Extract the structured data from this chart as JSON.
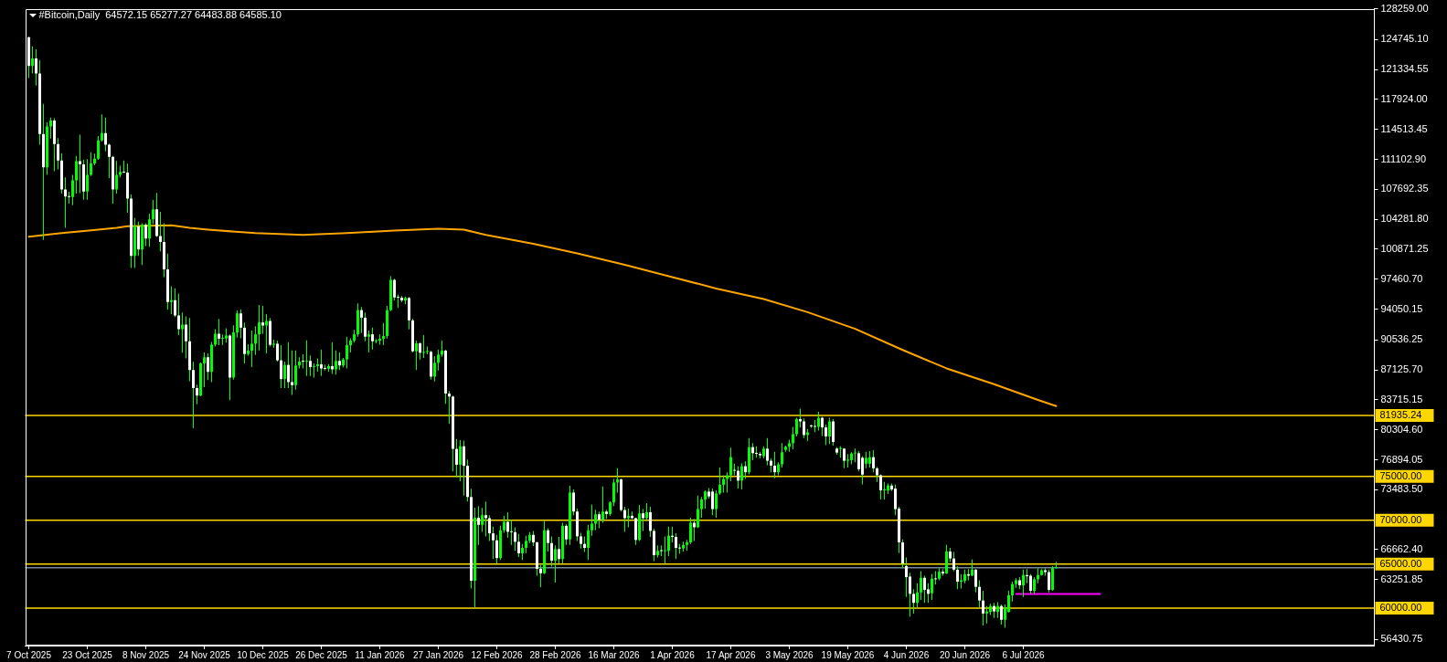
{
  "chart_data": {
    "type": "candlestick",
    "title": "#Bitcoin,Daily  64572.15 65277.27 64483.88 64585.10",
    "color": "#00ff00",
    "x": [
      "2025-10-07",
      "2025-10-08",
      "2025-10-09",
      "2025-10-10",
      "2025-10-11",
      "2025-10-12",
      "2025-10-13",
      "2025-10-14",
      "2025-10-15",
      "2025-10-16",
      "2025-10-17",
      "2025-10-18",
      "2025-10-19",
      "2025-10-20",
      "2025-10-21",
      "2025-10-22",
      "2025-10-23",
      "2025-10-24",
      "2025-10-25",
      "2025-10-26",
      "2025-10-27",
      "2025-10-28",
      "2025-10-29",
      "2025-10-30",
      "2025-10-31",
      "2025-11-01",
      "2025-11-02",
      "2025-11-03",
      "2025-11-04",
      "2025-11-05",
      "2025-11-06",
      "2025-11-07",
      "2025-11-08",
      "2025-11-09",
      "2025-11-10",
      "2025-11-11",
      "2025-11-12",
      "2025-11-13",
      "2025-11-14",
      "2025-11-15",
      "2025-11-16",
      "2025-11-17",
      "2025-11-18",
      "2025-11-19",
      "2025-11-20",
      "2025-11-21",
      "2025-11-22",
      "2025-11-23",
      "2025-11-24",
      "2025-11-25",
      "2025-11-26",
      "2025-11-27",
      "2025-11-28",
      "2025-11-29",
      "2025-11-30",
      "2025-12-01",
      "2025-12-02",
      "2025-12-03",
      "2025-12-04",
      "2025-12-05",
      "2025-12-06",
      "2025-12-07",
      "2025-12-08",
      "2025-12-09",
      "2025-12-10",
      "2025-12-11",
      "2025-12-12",
      "2025-12-13",
      "2025-12-14",
      "2025-12-15",
      "2025-12-16",
      "2025-12-17",
      "2025-12-18",
      "2025-12-19",
      "2025-12-20",
      "2025-12-21",
      "2025-12-22",
      "2025-12-23",
      "2025-12-24",
      "2025-12-25",
      "2025-12-26",
      "2025-12-27",
      "2025-12-28",
      "2025-12-29",
      "2025-12-30",
      "2025-12-31",
      "2026-01-01",
      "2026-01-02",
      "2026-01-03",
      "2026-01-04",
      "2026-01-05",
      "2026-01-06",
      "2026-01-07",
      "2026-01-08",
      "2026-01-09",
      "2026-01-10",
      "2026-01-11",
      "2026-01-12",
      "2026-01-13",
      "2026-01-14",
      "2026-01-15",
      "2026-01-16",
      "2026-01-17",
      "2026-01-18",
      "2026-01-19",
      "2026-01-20",
      "2026-01-21",
      "2026-01-22",
      "2026-01-23",
      "2026-01-24",
      "2026-01-25",
      "2026-01-26",
      "2026-01-27",
      "2026-01-28",
      "2026-01-29",
      "2026-01-30",
      "2026-01-31",
      "2026-02-01",
      "2026-02-02",
      "2026-02-03",
      "2026-02-04",
      "2026-02-05",
      "2026-02-06",
      "2026-02-07",
      "2026-02-08",
      "2026-02-09",
      "2026-02-10",
      "2026-02-11",
      "2026-02-12",
      "2026-02-13",
      "2026-02-14",
      "2026-02-15",
      "2026-02-16",
      "2026-02-17",
      "2026-02-18",
      "2026-02-19",
      "2026-02-20",
      "2026-02-21",
      "2026-02-22",
      "2026-02-23",
      "2026-02-24",
      "2026-02-25",
      "2026-02-26",
      "2026-02-27",
      "2026-02-28",
      "2026-03-01",
      "2026-03-02",
      "2026-03-03",
      "2026-03-04",
      "2026-03-05",
      "2026-03-06",
      "2026-03-07",
      "2026-03-08",
      "2026-03-09",
      "2026-03-10",
      "2026-03-11",
      "2026-03-12",
      "2026-03-13",
      "2026-03-14",
      "2026-03-15",
      "2026-03-16",
      "2026-03-17",
      "2026-03-18",
      "2026-03-19",
      "2026-03-20",
      "2026-03-21",
      "2026-03-22",
      "2026-03-23",
      "2026-03-24",
      "2026-03-25",
      "2026-03-26",
      "2026-03-27",
      "2026-03-28",
      "2026-03-29",
      "2026-03-30",
      "2026-03-31",
      "2026-04-01",
      "2026-04-02",
      "2026-04-03",
      "2026-04-04",
      "2026-04-05",
      "2026-04-06",
      "2026-04-07",
      "2026-04-08",
      "2026-04-09",
      "2026-04-10",
      "2026-04-11",
      "2026-04-12",
      "2026-04-13",
      "2026-04-14",
      "2026-04-15",
      "2026-04-16",
      "2026-04-17",
      "2026-04-18",
      "2026-04-19",
      "2026-04-20",
      "2026-04-21",
      "2026-04-22",
      "2026-04-23",
      "2026-04-24",
      "2026-04-25",
      "2026-04-26",
      "2026-04-27",
      "2026-04-28",
      "2026-04-29",
      "2026-04-30",
      "2026-05-01",
      "2026-05-02",
      "2026-05-03",
      "2026-05-04",
      "2026-05-05",
      "2026-05-06",
      "2026-05-07",
      "2026-05-08",
      "2026-05-09",
      "2026-05-10",
      "2026-05-11",
      "2026-05-12",
      "2026-05-13",
      "2026-05-14",
      "2026-05-15",
      "2026-05-16",
      "2026-05-17",
      "2026-05-18",
      "2026-05-19",
      "2026-05-20",
      "2026-05-21",
      "2026-05-22",
      "2026-05-23",
      "2026-05-24",
      "2026-05-25",
      "2026-05-26",
      "2026-05-27",
      "2026-05-28",
      "2026-05-29",
      "2026-05-30",
      "2026-05-31",
      "2026-06-01",
      "2026-06-02",
      "2026-06-03",
      "2026-06-04",
      "2026-06-05",
      "2026-06-06",
      "2026-06-07",
      "2026-06-08",
      "2026-06-09",
      "2026-06-10",
      "2026-06-11",
      "2026-06-12",
      "2026-06-13",
      "2026-06-14",
      "2026-06-15",
      "2026-06-16",
      "2026-06-17",
      "2026-06-18",
      "2026-06-19",
      "2026-06-20",
      "2026-06-21",
      "2026-06-22",
      "2026-06-23",
      "2026-06-24",
      "2026-06-25",
      "2026-06-26",
      "2026-06-27",
      "2026-06-28",
      "2026-06-29",
      "2026-06-30",
      "2026-07-01",
      "2026-07-02",
      "2026-07-03",
      "2026-07-04",
      "2026-07-05",
      "2026-07-06",
      "2026-07-07",
      "2026-07-08",
      "2026-07-09",
      "2026-07-10",
      "2026-07-11",
      "2026-07-12",
      "2026-07-13",
      "2026-07-14",
      "2026-07-15"
    ],
    "ohlc": [
      [
        125010,
        125080,
        120360,
        121740
      ],
      [
        121740,
        123980,
        120880,
        122600
      ],
      [
        122600,
        123630,
        119500,
        120880
      ],
      [
        120880,
        122430,
        112780,
        113990
      ],
      [
        113990,
        117430,
        101930,
        110200
      ],
      [
        110200,
        115360,
        109340,
        114850
      ],
      [
        114850,
        115880,
        113470,
        115540
      ],
      [
        115540,
        115780,
        109750,
        112850
      ],
      [
        112850,
        113540,
        109960,
        110990
      ],
      [
        110990,
        111820,
        107200,
        107680
      ],
      [
        107680,
        109060,
        103310,
        106860
      ],
      [
        106860,
        107410,
        106060,
        106820
      ],
      [
        106820,
        109340,
        105890,
        108720
      ],
      [
        108720,
        111510,
        107200,
        110890
      ],
      [
        110890,
        113920,
        107270,
        110540
      ],
      [
        110540,
        111060,
        106510,
        107440
      ],
      [
        107440,
        111130,
        106510,
        109340
      ],
      [
        109340,
        111920,
        109200,
        110650
      ],
      [
        110650,
        111750,
        110440,
        111200
      ],
      [
        111200,
        113750,
        111060,
        113260
      ],
      [
        113260,
        116230,
        113130,
        114090
      ],
      [
        114090,
        115880,
        112020,
        112780
      ],
      [
        112780,
        112900,
        108990,
        111400
      ],
      [
        111400,
        111500,
        106060,
        107680
      ],
      [
        107680,
        110920,
        107200,
        109340
      ],
      [
        109340,
        110370,
        109060,
        109680
      ],
      [
        109680,
        110990,
        109540,
        109610
      ],
      [
        109610,
        110610,
        105030,
        106650
      ],
      [
        106650,
        107100,
        98730,
        100100
      ],
      [
        100100,
        104440,
        98730,
        103480
      ],
      [
        103480,
        104000,
        100100,
        100830
      ],
      [
        100830,
        103820,
        99070,
        103650
      ],
      [
        103650,
        103820,
        101240,
        102100
      ],
      [
        102100,
        104930,
        101140,
        104270
      ],
      [
        104270,
        106480,
        103760,
        105410
      ],
      [
        105410,
        107300,
        102270,
        102380
      ],
      [
        102380,
        105130,
        100620,
        101690
      ],
      [
        101690,
        103820,
        97690,
        98590
      ],
      [
        98590,
        100380,
        94010,
        94870
      ],
      [
        94870,
        96660,
        93490,
        95070
      ],
      [
        95070,
        96420,
        93140,
        93320
      ],
      [
        93320,
        95830,
        91080,
        91770
      ],
      [
        91770,
        93660,
        89080,
        92280
      ],
      [
        92280,
        93210,
        88430,
        90390
      ],
      [
        90390,
        93040,
        85840,
        87120
      ],
      [
        87120,
        88050,
        80470,
        85050
      ],
      [
        85050,
        85460,
        83220,
        84190
      ],
      [
        84190,
        87980,
        84120,
        87870
      ],
      [
        87870,
        89110,
        85150,
        88560
      ],
      [
        88560,
        89010,
        85980,
        86900
      ],
      [
        86900,
        90320,
        85740,
        90010
      ],
      [
        90010,
        91770,
        89800,
        91250
      ],
      [
        91250,
        92940,
        89940,
        90670
      ],
      [
        90670,
        91180,
        89940,
        90700
      ],
      [
        90700,
        91870,
        90220,
        91040
      ],
      [
        91040,
        91180,
        83670,
        86260
      ],
      [
        86260,
        92220,
        86010,
        91390
      ],
      [
        91390,
        93900,
        90800,
        93560
      ],
      [
        93560,
        94010,
        90730,
        91940
      ],
      [
        91940,
        92530,
        87870,
        88940
      ],
      [
        88940,
        90040,
        88740,
        89320
      ],
      [
        89320,
        91600,
        87460,
        90110
      ],
      [
        90110,
        92110,
        88840,
        91180
      ],
      [
        91180,
        94520,
        89360,
        92530
      ],
      [
        92530,
        94420,
        91250,
        92180
      ],
      [
        92180,
        93490,
        89010,
        92700
      ],
      [
        92700,
        93040,
        89800,
        89980
      ],
      [
        89980,
        90560,
        89630,
        90110
      ],
      [
        90110,
        90460,
        88080,
        88220
      ],
      [
        88220,
        89940,
        85050,
        86080
      ],
      [
        86080,
        88080,
        85050,
        87700
      ],
      [
        87700,
        90290,
        85050,
        85740
      ],
      [
        85740,
        89360,
        84290,
        85390
      ],
      [
        85390,
        89360,
        84880,
        87630
      ],
      [
        87630,
        88560,
        87290,
        88080
      ],
      [
        88080,
        88910,
        87290,
        88060
      ],
      [
        88060,
        90490,
        86430,
        88150
      ],
      [
        88150,
        88770,
        86430,
        87460
      ],
      [
        87460,
        87870,
        86260,
        87560
      ],
      [
        87560,
        88430,
        86940,
        87770
      ],
      [
        87770,
        89420,
        86430,
        87290
      ],
      [
        87290,
        87740,
        87050,
        87250
      ],
      [
        87250,
        87800,
        86940,
        87560
      ],
      [
        87560,
        90290,
        86670,
        87190
      ],
      [
        87190,
        89360,
        86600,
        88150
      ],
      [
        88150,
        89110,
        87120,
        87630
      ],
      [
        87630,
        88490,
        87390,
        88320
      ],
      [
        88320,
        90870,
        87290,
        89940
      ],
      [
        89940,
        90730,
        89110,
        90460
      ],
      [
        90460,
        91700,
        90220,
        91180
      ],
      [
        91180,
        94700,
        90910,
        93940
      ],
      [
        93940,
        94280,
        91320,
        93080
      ],
      [
        93080,
        93660,
        90390,
        90910
      ],
      [
        90910,
        91600,
        89110,
        91180
      ],
      [
        91180,
        91940,
        89460,
        90390
      ],
      [
        90390,
        90640,
        90150,
        90460
      ],
      [
        90460,
        91180,
        90010,
        90670
      ],
      [
        90670,
        92460,
        89940,
        90980
      ],
      [
        90980,
        94420,
        90700,
        93940
      ],
      [
        93940,
        97800,
        93830,
        97380
      ],
      [
        97380,
        97520,
        95040,
        95380
      ],
      [
        95380,
        95730,
        94180,
        95350
      ],
      [
        95350,
        95560,
        94830,
        95040
      ],
      [
        95040,
        95490,
        94590,
        95320
      ],
      [
        95320,
        95420,
        91730,
        92770
      ],
      [
        92770,
        92970,
        89110,
        89250
      ],
      [
        89250,
        90460,
        87120,
        90150
      ],
      [
        90150,
        90290,
        88320,
        89080
      ],
      [
        89080,
        91080,
        88490,
        89180
      ],
      [
        89180,
        89800,
        88910,
        89180
      ],
      [
        89180,
        89320,
        86010,
        86360
      ],
      [
        86360,
        88700,
        85810,
        87940
      ],
      [
        87940,
        89420,
        87050,
        88870
      ],
      [
        88870,
        90460,
        88630,
        89320
      ],
      [
        89320,
        89420,
        83260,
        84430
      ],
      [
        84430,
        84710,
        80980,
        84090
      ],
      [
        84090,
        84190,
        75580,
        78130
      ],
      [
        78130,
        79260,
        74890,
        76330
      ],
      [
        76330,
        79120,
        74440,
        78430
      ],
      [
        78430,
        79090,
        72820,
        76200
      ],
      [
        76200,
        76920,
        72130,
        72650
      ],
      [
        72650,
        73580,
        62240,
        63110
      ],
      [
        63110,
        71440,
        60070,
        70300
      ],
      [
        70300,
        71610,
        67200,
        69480
      ],
      [
        69480,
        71410,
        68690,
        70580
      ],
      [
        70580,
        72130,
        68170,
        70240
      ],
      [
        70240,
        70580,
        67650,
        68510
      ],
      [
        68510,
        69270,
        65590,
        67720
      ],
      [
        67720,
        68340,
        65070,
        65690
      ],
      [
        65690,
        69380,
        65480,
        68860
      ],
      [
        68860,
        70510,
        68580,
        69820
      ],
      [
        69820,
        70920,
        68000,
        68690
      ],
      [
        68690,
        70060,
        67200,
        68650
      ],
      [
        68650,
        69200,
        66510,
        67550
      ],
      [
        67550,
        68440,
        65830,
        66240
      ],
      [
        66240,
        67310,
        65480,
        66860
      ],
      [
        66860,
        68240,
        66270,
        67650
      ],
      [
        67650,
        68650,
        67410,
        68340
      ],
      [
        68340,
        68790,
        67070,
        67480
      ],
      [
        67480,
        67550,
        63690,
        64480
      ],
      [
        64480,
        64900,
        62380,
        63970
      ],
      [
        63970,
        69890,
        63860,
        68860
      ],
      [
        68860,
        69100,
        66450,
        67410
      ],
      [
        67410,
        68170,
        64720,
        65410
      ],
      [
        65410,
        67140,
        62900,
        66720
      ],
      [
        66720,
        68100,
        65070,
        65580
      ],
      [
        65580,
        69720,
        65070,
        69370
      ],
      [
        69370,
        69550,
        67200,
        67820
      ],
      [
        67820,
        73920,
        67200,
        73160
      ],
      [
        73160,
        73510,
        70580,
        70990
      ],
      [
        70990,
        71340,
        67650,
        68170
      ],
      [
        68170,
        68580,
        66790,
        67310
      ],
      [
        67310,
        68170,
        66380,
        66860
      ],
      [
        66860,
        69480,
        65480,
        68860
      ],
      [
        68860,
        71790,
        68240,
        69620
      ],
      [
        69620,
        71200,
        68860,
        70680
      ],
      [
        70680,
        70990,
        69100,
        70060
      ],
      [
        70060,
        73850,
        69720,
        70990
      ],
      [
        70990,
        71200,
        70170,
        70720
      ],
      [
        70720,
        72160,
        70510,
        72030
      ],
      [
        72030,
        74710,
        71610,
        74300
      ],
      [
        74300,
        75920,
        73160,
        74650
      ],
      [
        74650,
        74750,
        70990,
        71170
      ],
      [
        71170,
        71550,
        68690,
        70240
      ],
      [
        70240,
        71340,
        69200,
        70510
      ],
      [
        70510,
        70990,
        70170,
        70240
      ],
      [
        70240,
        70300,
        67200,
        67760
      ],
      [
        67760,
        71750,
        67650,
        70790
      ],
      [
        70790,
        71270,
        68790,
        70240
      ],
      [
        70240,
        71960,
        69890,
        70920
      ],
      [
        70920,
        71540,
        68100,
        68790
      ],
      [
        68790,
        69030,
        65340,
        66030
      ],
      [
        66030,
        67140,
        65760,
        66520
      ],
      [
        66520,
        67140,
        65930,
        66490
      ],
      [
        66490,
        68170,
        65070,
        66520
      ],
      [
        66520,
        69270,
        65930,
        68240
      ],
      [
        68240,
        69270,
        67480,
        68100
      ],
      [
        68100,
        68510,
        65580,
        66860
      ],
      [
        66860,
        67310,
        66170,
        66790
      ],
      [
        66790,
        67550,
        66450,
        67200
      ],
      [
        67200,
        67760,
        66520,
        67480
      ],
      [
        67480,
        70300,
        67310,
        69720
      ],
      [
        69720,
        70170,
        67650,
        69200
      ],
      [
        69200,
        72820,
        69130,
        71270
      ],
      [
        71270,
        72650,
        70300,
        72370
      ],
      [
        72370,
        73400,
        71340,
        73270
      ],
      [
        73270,
        73680,
        72470,
        72720
      ],
      [
        73270,
        73610,
        70580,
        71270
      ],
      [
        71270,
        73400,
        70300,
        73060
      ],
      [
        73060,
        76020,
        72920,
        74030
      ],
      [
        74030,
        75130,
        73160,
        74710
      ],
      [
        74710,
        75470,
        73160,
        75130
      ],
      [
        75130,
        78260,
        74440,
        77190
      ],
      [
        75710,
        76440,
        75130,
        75640
      ],
      [
        75640,
        76160,
        73610,
        74510
      ],
      [
        74510,
        76510,
        73510,
        76160
      ],
      [
        76160,
        76710,
        74710,
        75470
      ],
      [
        75470,
        79360,
        75230,
        78330
      ],
      [
        78330,
        78780,
        76850,
        77640
      ],
      [
        77640,
        78430,
        77120,
        77570
      ],
      [
        77570,
        77810,
        77060,
        77400
      ],
      [
        77300,
        78430,
        77060,
        78160
      ],
      [
        78160,
        79360,
        76260,
        76780
      ],
      [
        76780,
        77060,
        75470,
        76230
      ],
      [
        76230,
        77810,
        74780,
        75470
      ],
      [
        75470,
        76610,
        75130,
        76370
      ],
      [
        76370,
        78780,
        76020,
        77750
      ],
      [
        78020,
        78500,
        77810,
        78370
      ],
      [
        78370,
        79190,
        77810,
        78780
      ],
      [
        78780,
        80640,
        78090,
        79810
      ],
      [
        79810,
        81670,
        79540,
        81530
      ],
      [
        81530,
        82710,
        80570,
        81260
      ],
      [
        81260,
        81600,
        79360,
        79710
      ],
      [
        79710,
        80400,
        79020,
        80020
      ],
      [
        80710,
        80910,
        80500,
        80700
      ],
      [
        80700,
        81430,
        80050,
        80640
      ],
      [
        80640,
        82360,
        80230,
        81670
      ],
      [
        81670,
        81780,
        79610,
        80570
      ],
      [
        80570,
        80910,
        78570,
        79540
      ],
      [
        79540,
        81670,
        78680,
        81260
      ],
      [
        81260,
        81530,
        78500,
        78920
      ],
      [
        78160,
        78330,
        77470,
        77710
      ],
      [
        78120,
        78430,
        77120,
        78120
      ],
      [
        78160,
        78230,
        75920,
        76780
      ],
      [
        76780,
        77540,
        76020,
        76920
      ],
      [
        76850,
        77750,
        76370,
        77610
      ],
      [
        77610,
        78160,
        76610,
        77610
      ],
      [
        77640,
        77880,
        75580,
        75820
      ],
      [
        77120,
        77300,
        74090,
        75200
      ],
      [
        76440,
        77810,
        75920,
        77120
      ],
      [
        76440,
        77880,
        76020,
        77190
      ],
      [
        77190,
        77980,
        75470,
        75920
      ],
      [
        75920,
        76090,
        74370,
        75130
      ],
      [
        75130,
        75230,
        72370,
        73400
      ],
      [
        73400,
        74370,
        72370,
        73540
      ],
      [
        73400,
        74200,
        72990,
        73960
      ],
      [
        73960,
        74200,
        73330,
        73510
      ],
      [
        73610,
        74090,
        70580,
        71270
      ],
      [
        71340,
        71540,
        66270,
        67480
      ],
      [
        67480,
        67820,
        64550,
        65070
      ],
      [
        64790,
        65760,
        61280,
        63520
      ],
      [
        63590,
        64030,
        59040,
        61620
      ],
      [
        61620,
        62140,
        59380,
        60590
      ],
      [
        60590,
        62830,
        60070,
        61790
      ],
      [
        61790,
        64210,
        60930,
        63450
      ],
      [
        63450,
        63690,
        60590,
        62070
      ],
      [
        62140,
        62830,
        60590,
        61620
      ],
      [
        61690,
        63860,
        60930,
        63350
      ],
      [
        63350,
        64210,
        62660,
        63280
      ],
      [
        63350,
        64550,
        63170,
        64140
      ],
      [
        64140,
        64450,
        63690,
        63930
      ],
      [
        63930,
        67200,
        63900,
        66450
      ],
      [
        66450,
        66860,
        65240,
        65650
      ],
      [
        65650,
        66380,
        64210,
        64380
      ],
      [
        64380,
        64790,
        62140,
        63000
      ],
      [
        63000,
        63860,
        62240,
        63170
      ],
      [
        63100,
        64380,
        62830,
        63860
      ],
      [
        63860,
        64450,
        63170,
        63690
      ],
      [
        63690,
        65520,
        63650,
        64380
      ],
      [
        64380,
        64450,
        61800,
        62420
      ],
      [
        62420,
        63170,
        60070,
        60860
      ],
      [
        60860,
        61970,
        58010,
        59380
      ],
      [
        59380,
        60240,
        58250,
        59620
      ],
      [
        59560,
        60490,
        59210,
        60240
      ],
      [
        60240,
        60590,
        58870,
        59620
      ],
      [
        59560,
        60660,
        58870,
        60240
      ],
      [
        60240,
        60420,
        58110,
        58660
      ],
      [
        58660,
        60420,
        57760,
        60070
      ],
      [
        59560,
        61970,
        59490,
        61450
      ],
      [
        61450,
        63000,
        60760,
        62730
      ],
      [
        62730,
        63410,
        62310,
        63170
      ],
      [
        63170,
        63520,
        62140,
        62590
      ],
      [
        62590,
        64380,
        61280,
        63760
      ],
      [
        63760,
        64450,
        62830,
        63620
      ],
      [
        63690,
        63860,
        61620,
        61970
      ],
      [
        61970,
        63520,
        61620,
        63280
      ],
      [
        63280,
        64550,
        62830,
        63760
      ],
      [
        63760,
        64450,
        63690,
        64310
      ],
      [
        64310,
        64550,
        63690,
        64100
      ],
      [
        64100,
        64380,
        61800,
        62070
      ],
      [
        62070,
        64790,
        61970,
        64550
      ],
      [
        64572.15,
        65277.27,
        64483.88,
        64585.1
      ]
    ],
    "colors": [
      "#ffffff",
      "#00ff00",
      "#ffffff",
      "#ffffff",
      "#ffffff",
      "#00ff00",
      "#00ff00",
      "#ffffff",
      "#ffffff",
      "#ffffff",
      "#ffffff",
      "#ffffff",
      "#00ff00",
      "#00ff00",
      "#ffffff",
      "#ffffff",
      "#00ff00",
      "#00ff00",
      "#00ff00",
      "#00ff00",
      "#00ff00",
      "#ffffff",
      "#ffffff",
      "#ffffff",
      "#00ff00",
      "#00ff00",
      "#ffffff",
      "#ffffff",
      "#ffffff",
      "#00ff00",
      "#ffffff",
      "#00ff00",
      "#ffffff",
      "#00ff00",
      "#00ff00",
      "#ffffff",
      "#ffffff",
      "#ffffff",
      "#ffffff",
      "#00ff00",
      "#ffffff",
      "#ffffff",
      "#00ff00",
      "#ffffff",
      "#ffffff",
      "#ffffff",
      "#ffffff",
      "#00ff00",
      "#00ff00",
      "#ffffff",
      "#00ff00",
      "#00ff00",
      "#ffffff",
      "#00ff00",
      "#00ff00",
      "#ffffff",
      "#00ff00",
      "#00ff00",
      "#ffffff",
      "#ffffff",
      "#00ff00",
      "#00ff00",
      "#00ff00",
      "#00ff00",
      "#ffffff",
      "#00ff00",
      "#ffffff",
      "#00ff00",
      "#ffffff",
      "#ffffff",
      "#00ff00",
      "#ffffff",
      "#ffffff",
      "#00ff00",
      "#00ff00",
      "#ffffff",
      "#00ff00",
      "#ffffff",
      "#00ff00",
      "#00ff00",
      "#ffffff",
      "#ffffff",
      "#00ff00",
      "#ffffff",
      "#00ff00",
      "#ffffff",
      "#00ff00",
      "#00ff00",
      "#00ff00",
      "#00ff00",
      "#00ff00",
      "#ffffff",
      "#ffffff",
      "#00ff00",
      "#ffffff",
      "#00ff00",
      "#00ff00",
      "#00ff00",
      "#00ff00",
      "#00ff00",
      "#ffffff",
      "#ffffff",
      "#ffffff",
      "#00ff00",
      "#ffffff",
      "#ffffff",
      "#00ff00",
      "#ffffff",
      "#00ff00",
      "#00ff00",
      "#ffffff",
      "#00ff00",
      "#00ff00",
      "#00ff00",
      "#ffffff",
      "#ffffff",
      "#ffffff",
      "#ffffff",
      "#00ff00",
      "#ffffff",
      "#ffffff",
      "#ffffff",
      "#00ff00",
      "#ffffff",
      "#00ff00",
      "#ffffff",
      "#ffffff",
      "#ffffff",
      "#ffffff",
      "#00ff00",
      "#00ff00",
      "#ffffff",
      "#ffffff",
      "#ffffff",
      "#ffffff",
      "#00ff00",
      "#00ff00",
      "#00ff00",
      "#ffffff",
      "#ffffff",
      "#ffffff",
      "#00ff00",
      "#ffffff",
      "#ffffff",
      "#00ff00",
      "#ffffff",
      "#00ff00",
      "#ffffff",
      "#00ff00",
      "#ffffff",
      "#ffffff",
      "#ffffff",
      "#ffffff",
      "#00ff00",
      "#00ff00",
      "#00ff00",
      "#ffffff",
      "#00ff00",
      "#ffffff",
      "#00ff00",
      "#00ff00",
      "#00ff00",
      "#ffffff",
      "#ffffff",
      "#00ff00",
      "#ffffff",
      "#ffffff",
      "#00ff00",
      "#ffffff",
      "#00ff00",
      "#ffffff",
      "#ffffff",
      "#00ff00",
      "#ffffff",
      "#00ff00",
      "#00ff00",
      "#ffffff",
      "#ffffff",
      "#ffffff",
      "#00ff00",
      "#00ff00",
      "#00ff00",
      "#ffffff",
      "#00ff00",
      "#00ff00",
      "#00ff00",
      "#ffffff",
      "#ffffff",
      "#00ff00",
      "#00ff00",
      "#00ff00",
      "#00ff00",
      "#00ff00",
      "#ffffff",
      "#ffffff",
      "#00ff00",
      "#ffffff",
      "#00ff00",
      "#ffffff",
      "#ffffff",
      "#ffffff",
      "#00ff00",
      "#ffffff",
      "#ffffff",
      "#ffffff",
      "#00ff00",
      "#00ff00",
      "#00ff00",
      "#00ff00",
      "#00ff00",
      "#00ff00",
      "#ffffff",
      "#ffffff",
      "#00ff00",
      "#ffffff",
      "#ffffff",
      "#00ff00",
      "#ffffff",
      "#ffffff",
      "#00ff00",
      "#ffffff",
      "#ffffff",
      "#00ff00",
      "#ffffff",
      "#00ff00",
      "#00ff00",
      "#00ff00",
      "#ffffff",
      "#ffffff",
      "#00ff00",
      "#00ff00",
      "#ffffff",
      "#ffffff",
      "#ffffff",
      "#00ff00",
      "#00ff00",
      "#ffffff",
      "#ffffff",
      "#ffffff",
      "#ffffff",
      "#ffffff",
      "#ffffff",
      "#ffffff",
      "#00ff00",
      "#00ff00",
      "#ffffff",
      "#ffffff",
      "#00ff00",
      "#ffffff",
      "#00ff00",
      "#ffffff",
      "#00ff00",
      "#ffffff",
      "#ffffff",
      "#ffffff",
      "#00ff00",
      "#00ff00",
      "#ffffff",
      "#00ff00",
      "#ffffff",
      "#ffffff",
      "#ffffff",
      "#00ff00",
      "#00ff00",
      "#ffffff",
      "#00ff00",
      "#ffffff",
      "#00ff00",
      "#00ff00",
      "#00ff00",
      "#00ff00",
      "#ffffff",
      "#00ff00",
      "#ffffff",
      "#ffffff",
      "#00ff00",
      "#00ff00",
      "#00ff00",
      "#ffffff",
      "#ffffff",
      "#00ff00",
      "#00ff00"
    ],
    "series": [
      {
        "type": "line",
        "color": "#ffa500",
        "x": [
          "2025-10-07",
          "2025-10-16",
          "2025-10-26",
          "2025-10-31",
          "2025-11-03",
          "2025-11-15",
          "2025-11-20",
          "2025-11-25",
          "2025-12-08",
          "2025-12-21",
          "2026-01-02",
          "2026-01-15",
          "2026-01-27",
          "2026-02-03",
          "2026-02-09",
          "2026-02-22",
          "2026-03-06",
          "2026-03-19",
          "2026-04-01",
          "2026-04-13",
          "2026-04-26",
          "2026-05-08",
          "2026-05-21",
          "2026-06-03",
          "2026-06-15",
          "2026-06-28",
          "2026-07-10",
          "2026-07-15"
        ],
        "values": [
          102300,
          102700,
          103100,
          103300,
          103500,
          103600,
          103300,
          103100,
          102700,
          102500,
          102700,
          103000,
          103200,
          103100,
          102500,
          101500,
          100400,
          99100,
          97700,
          96400,
          95200,
          93700,
          91800,
          89400,
          87300,
          85500,
          83700,
          83000
        ]
      },
      {
        "type": "line",
        "color": "#ff00ff",
        "x": [
          "2026-07-04",
          "2026-07-27"
        ],
        "values": [
          61600,
          61600
        ]
      }
    ],
    "xlim": [
      "2025-10-06",
      "2026-10-10"
    ],
    "xticks": [
      {
        "value": "2025-10-07",
        "label": "7 Oct 2025"
      },
      {
        "value": "2025-10-23",
        "label": "23 Oct 2025"
      },
      {
        "value": "2025-11-08",
        "label": "8 Nov 2025"
      },
      {
        "value": "2025-11-24",
        "label": "24 Nov 2025"
      },
      {
        "value": "2025-12-10",
        "label": "10 Dec 2025"
      },
      {
        "value": "2025-12-26",
        "label": "26 Dec 2025"
      },
      {
        "value": "2026-01-11",
        "label": "11 Jan 2026"
      },
      {
        "value": "2026-01-27",
        "label": "27 Jan 2026"
      },
      {
        "value": "2026-02-12",
        "label": "12 Feb 2026"
      },
      {
        "value": "2026-02-28",
        "label": "28 Feb 2026"
      },
      {
        "value": "2026-03-16",
        "label": "16 Mar 2026"
      },
      {
        "value": "2026-04-01",
        "label": "1 Apr 2026"
      },
      {
        "value": "2026-04-17",
        "label": "17 Apr 2026"
      },
      {
        "value": "2026-05-03",
        "label": "3 May 2026"
      },
      {
        "value": "2026-05-19",
        "label": "19 May 2026"
      },
      {
        "value": "2026-06-04",
        "label": "4 Jun 2026"
      },
      {
        "value": "2026-06-20",
        "label": "20 Jun 2026"
      },
      {
        "value": "2026-07-06",
        "label": "6 Jul 2026"
      }
    ],
    "ylim": [
      55730,
      128259
    ],
    "yticks": [
      {
        "value": 56430.75,
        "label": "56430.75"
      },
      {
        "value": 63251.85,
        "label": "63251.85"
      },
      {
        "value": 66662.4,
        "label": "66662.40"
      },
      {
        "value": 73483.5,
        "label": "73483.50"
      },
      {
        "value": 76894.05,
        "label": "76894.05"
      },
      {
        "value": 80304.6,
        "label": "80304.60"
      },
      {
        "value": 83715.15,
        "label": "83715.15"
      },
      {
        "value": 87125.7,
        "label": "87125.70"
      },
      {
        "value": 90536.25,
        "label": "90536.25"
      },
      {
        "value": 94050.15,
        "label": "94050.15"
      },
      {
        "value": 97460.7,
        "label": "97460.70"
      },
      {
        "value": 100871.25,
        "label": "100871.25"
      },
      {
        "value": 104281.8,
        "label": "104281.80"
      },
      {
        "value": 107692.35,
        "label": "107692.35"
      },
      {
        "value": 111102.9,
        "label": "111102.90"
      },
      {
        "value": 114513.45,
        "label": "114513.45"
      },
      {
        "value": 117924,
        "label": "117924.00"
      },
      {
        "value": 121334.55,
        "label": "121334.55"
      },
      {
        "value": 124745.1,
        "label": "124745.10"
      },
      {
        "value": 128259,
        "label": "128259.00"
      }
    ],
    "ref_lines": [
      {
        "axis": "y",
        "value": 64585.1,
        "color": "#778899"
      },
      {
        "axis": "y",
        "value": 81935.24,
        "label": "81935.24",
        "color": "#ffd700"
      },
      {
        "axis": "y",
        "value": 75000,
        "label": "75000.00",
        "color": "#ffd700"
      },
      {
        "axis": "y",
        "value": 70000,
        "label": "70000.00",
        "color": "#ffd700"
      },
      {
        "axis": "y",
        "value": 65000,
        "label": "65000.00",
        "color": "#ffd700"
      },
      {
        "axis": "y",
        "value": 60000,
        "label": "60000.00",
        "color": "#ffd700"
      }
    ]
  }
}
